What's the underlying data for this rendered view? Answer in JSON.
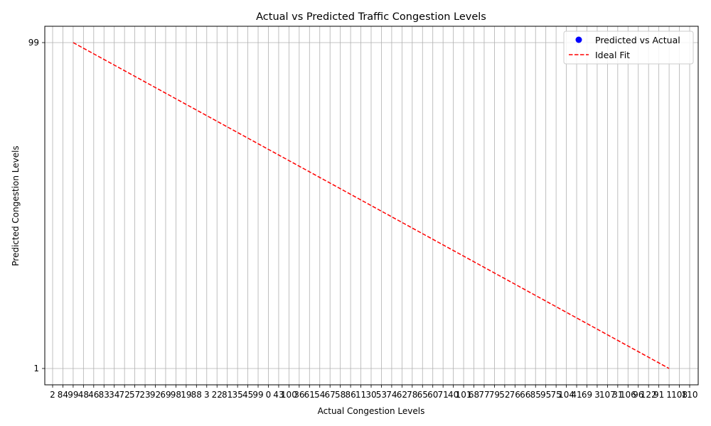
{
  "chart_data": {
    "type": "scatter",
    "title": "Actual vs Predicted Traffic Congestion Levels",
    "xlabel": "Actual Congestion Levels",
    "ylabel": "Predicted Congestion Levels",
    "x_categories": [
      "2",
      "84",
      "99",
      "48",
      "46",
      "83",
      "34",
      "72",
      "57",
      "23",
      "92",
      "69",
      "98",
      "19",
      "88",
      "3",
      "22",
      "81",
      "35",
      "45",
      "99",
      "0",
      "43",
      "100",
      "36",
      "61",
      "54",
      "67",
      "58",
      "86",
      "11",
      "30",
      "53",
      "74",
      "62",
      "78",
      "65",
      "60",
      "71",
      "40",
      "101",
      "68",
      "77",
      "79",
      "52",
      "76",
      "66",
      "85",
      "95",
      "75",
      "104",
      "41",
      "69",
      "3",
      "107",
      "31",
      "106",
      "96",
      "122",
      "91",
      "1",
      "108",
      "110"
    ],
    "y_ticks": [
      "1",
      "99"
    ],
    "grid": true,
    "legend_position": "top-right",
    "series": [
      {
        "name": "Predicted vs Actual",
        "kind": "scatter",
        "color": "#0000ff",
        "points": []
      },
      {
        "name": "Ideal Fit",
        "kind": "line",
        "style": "dashed",
        "color": "#ff0000",
        "x": [
          "99",
          "1"
        ],
        "y": [
          "99",
          "1"
        ]
      }
    ]
  }
}
